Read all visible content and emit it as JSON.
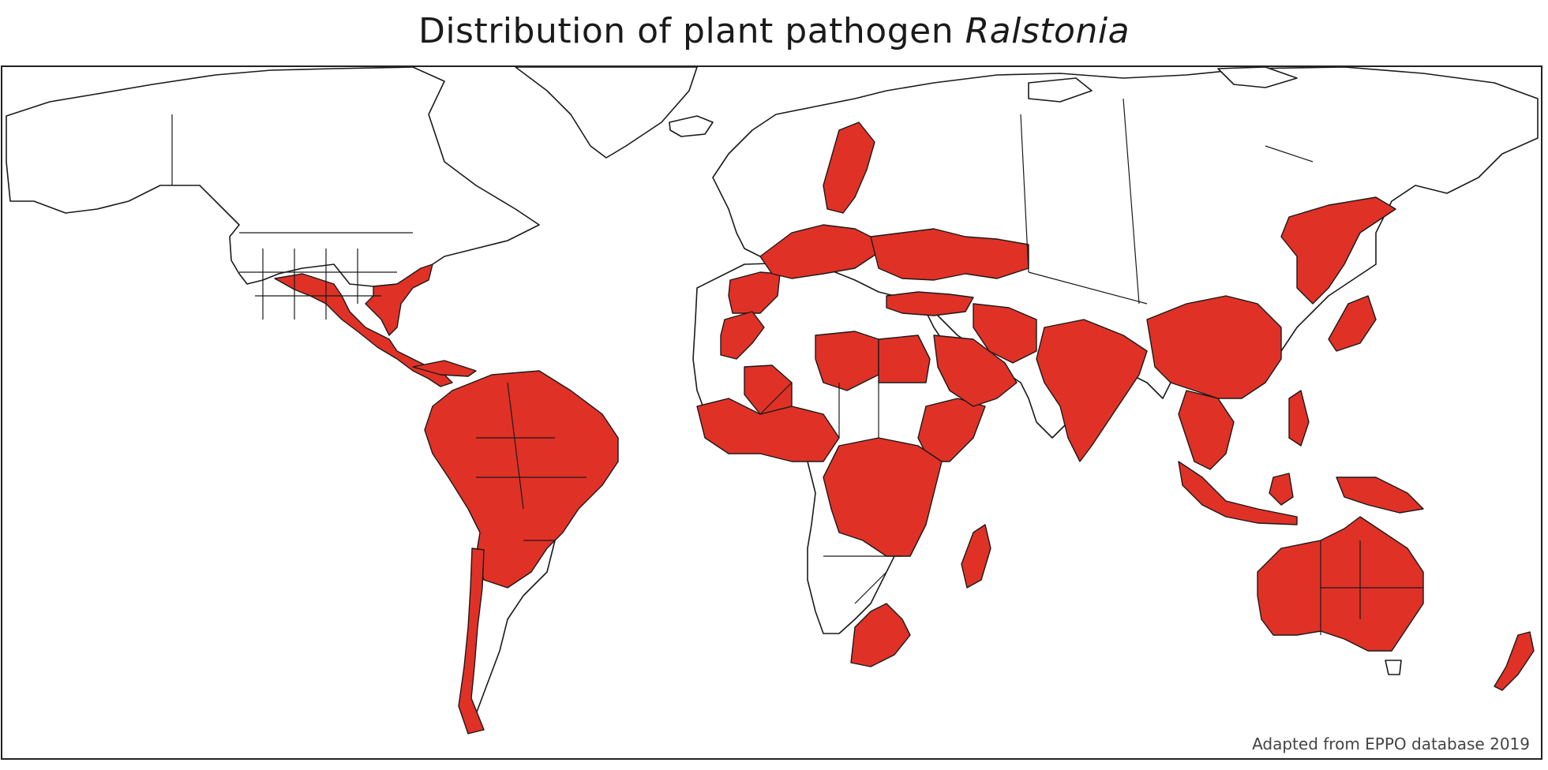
{
  "title": {
    "main": "Distribution of plant pathogen",
    "species": "Ralstonia"
  },
  "credit": "Adapted from EPPO database 2019",
  "colors": {
    "present": "#e03127",
    "absent": "#ffffff",
    "border": "#1a1a1a"
  },
  "map": {
    "projection": "Miller cylindrical",
    "present_regions": [
      "South-eastern United States",
      "Mexico",
      "Central America",
      "Caribbean",
      "South America",
      "Chile",
      "Iberian Peninsula",
      "France",
      "Central Europe",
      "Scandinavia",
      "Eastern Europe",
      "Turkey",
      "Morocco",
      "Libya",
      "Egypt",
      "West Africa",
      "Ethiopia",
      "Central Africa",
      "Southern Africa",
      "Madagascar",
      "Saudi Arabia",
      "Iran",
      "South Asia",
      "China",
      "South-east Asia",
      "Philippines",
      "Japan",
      "Far-eastern Russia",
      "Indonesia",
      "New Guinea",
      "Australia",
      "New Zealand"
    ]
  }
}
